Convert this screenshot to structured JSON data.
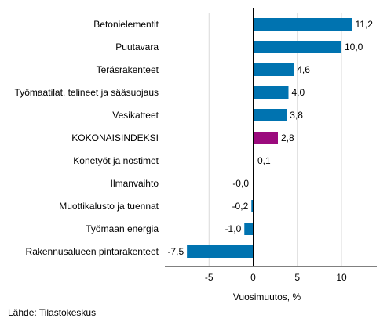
{
  "chart_data": {
    "type": "bar",
    "orientation": "horizontal",
    "categories": [
      "Betonielementit",
      "Puutavara",
      "Teräsrakenteet",
      "Työmaatilat, telineet ja sääsuojaus",
      "Vesikatteet",
      "KOKONAISINDEKSI",
      "Konetyöt ja nostimet",
      "Ilmanvaihto",
      "Muottikalusto ja tuennat",
      "Työmaan energia",
      "Rakennusalueen pintarakenteet"
    ],
    "values": [
      11.2,
      10.0,
      4.6,
      4.0,
      3.8,
      2.8,
      0.1,
      -0.0,
      -0.2,
      -1.0,
      -7.5
    ],
    "value_labels": [
      "11,2",
      "10,0",
      "4,6",
      "4,0",
      "3,8",
      "2,8",
      "0,1",
      "-0,0",
      "-0,2",
      "-1,0",
      "-7,5"
    ],
    "highlight": [
      false,
      false,
      false,
      false,
      false,
      true,
      false,
      false,
      false,
      false,
      false
    ],
    "xlabel": "Vuosimuutos, %",
    "xlim": [
      -10,
      14
    ],
    "xticks": [
      -5,
      0,
      5,
      10
    ],
    "xtick_labels": [
      "-5",
      "0",
      "5",
      "10"
    ],
    "grid": "vertical",
    "colors": {
      "bar": "#0073b0",
      "highlight": "#9b0a7d",
      "grid": "#d9d9d9",
      "axis": "#000000"
    }
  },
  "source_note": "Lähde: Tilastokeskus"
}
